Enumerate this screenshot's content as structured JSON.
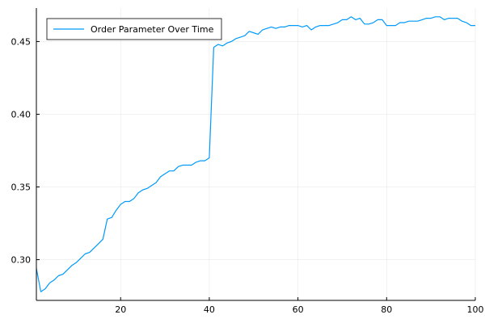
{
  "chart_data": {
    "type": "line",
    "title": "",
    "xlabel": "",
    "ylabel": "",
    "xlim": [
      1,
      100
    ],
    "ylim": [
      0.272,
      0.473
    ],
    "xticks": [
      20,
      40,
      60,
      80,
      100
    ],
    "xtick_labels": [
      "20",
      "40",
      "60",
      "80",
      "100"
    ],
    "yticks": [
      0.3,
      0.35,
      0.4,
      0.45
    ],
    "ytick_labels": [
      "0.30",
      "0.35",
      "0.40",
      "0.45"
    ],
    "grid": true,
    "legend_position": "top-left",
    "series": [
      {
        "name": "Order Parameter Over Time",
        "color": "#009AFA",
        "x": [
          1,
          2,
          3,
          4,
          5,
          6,
          7,
          8,
          9,
          10,
          11,
          12,
          13,
          14,
          15,
          16,
          17,
          18,
          19,
          20,
          21,
          22,
          23,
          24,
          25,
          26,
          27,
          28,
          29,
          30,
          31,
          32,
          33,
          34,
          35,
          36,
          37,
          38,
          39,
          40,
          41,
          42,
          43,
          44,
          45,
          46,
          47,
          48,
          49,
          50,
          51,
          52,
          53,
          54,
          55,
          56,
          57,
          58,
          59,
          60,
          61,
          62,
          63,
          64,
          65,
          66,
          67,
          68,
          69,
          70,
          71,
          72,
          73,
          74,
          75,
          76,
          77,
          78,
          79,
          80,
          81,
          82,
          83,
          84,
          85,
          86,
          87,
          88,
          89,
          90,
          91,
          92,
          93,
          94,
          95,
          96,
          97,
          98,
          99,
          100
        ],
        "values": [
          0.294,
          0.278,
          0.28,
          0.284,
          0.286,
          0.289,
          0.29,
          0.293,
          0.296,
          0.298,
          0.301,
          0.304,
          0.305,
          0.308,
          0.311,
          0.314,
          0.328,
          0.329,
          0.334,
          0.338,
          0.34,
          0.34,
          0.342,
          0.346,
          0.348,
          0.349,
          0.351,
          0.353,
          0.357,
          0.359,
          0.361,
          0.361,
          0.364,
          0.365,
          0.365,
          0.365,
          0.367,
          0.368,
          0.368,
          0.37,
          0.446,
          0.448,
          0.447,
          0.449,
          0.45,
          0.452,
          0.453,
          0.454,
          0.457,
          0.456,
          0.455,
          0.458,
          0.459,
          0.46,
          0.459,
          0.46,
          0.46,
          0.461,
          0.461,
          0.461,
          0.46,
          0.461,
          0.458,
          0.46,
          0.461,
          0.461,
          0.461,
          0.462,
          0.463,
          0.465,
          0.465,
          0.467,
          0.465,
          0.466,
          0.462,
          0.462,
          0.463,
          0.465,
          0.465,
          0.461,
          0.461,
          0.461,
          0.463,
          0.463,
          0.464,
          0.464,
          0.464,
          0.465,
          0.466,
          0.466,
          0.467,
          0.467,
          0.465,
          0.466,
          0.466,
          0.466,
          0.464,
          0.463,
          0.461,
          0.461
        ]
      }
    ]
  }
}
